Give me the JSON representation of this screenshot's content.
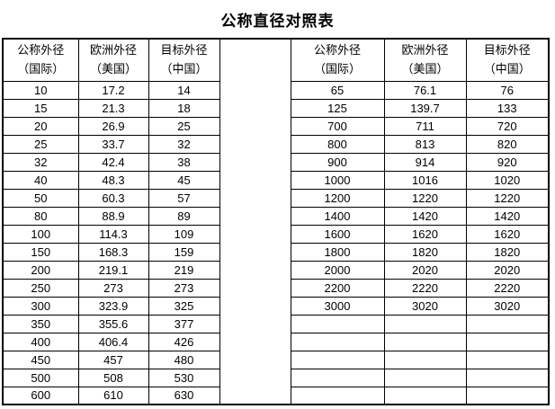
{
  "title": "公称直径对照表",
  "columns": [
    {
      "line1": "公称外径",
      "line2": "（国际）"
    },
    {
      "line1": "欧洲外径",
      "line2": "（美国）"
    },
    {
      "line1": "目标外径",
      "line2": "（中国）"
    }
  ],
  "tables": [
    {
      "rows": [
        [
          "10",
          "17.2",
          "14"
        ],
        [
          "15",
          "21.3",
          "18"
        ],
        [
          "20",
          "26.9",
          "25"
        ],
        [
          "25",
          "33.7",
          "32"
        ],
        [
          "32",
          "42.4",
          "38"
        ],
        [
          "40",
          "48.3",
          "45"
        ],
        [
          "50",
          "60.3",
          "57"
        ],
        [
          "80",
          "88.9",
          "89"
        ],
        [
          "100",
          "114.3",
          "109"
        ],
        [
          "150",
          "168.3",
          "159"
        ],
        [
          "200",
          "219.1",
          "219"
        ],
        [
          "250",
          "273",
          "273"
        ],
        [
          "300",
          "323.9",
          "325"
        ],
        [
          "350",
          "355.6",
          "377"
        ],
        [
          "400",
          "406.4",
          "426"
        ],
        [
          "450",
          "457",
          "480"
        ],
        [
          "500",
          "508",
          "530"
        ],
        [
          "600",
          "610",
          "630"
        ]
      ]
    },
    {
      "rows": [
        [
          "65",
          "76.1",
          "76"
        ],
        [
          "125",
          "139.7",
          "133"
        ],
        [
          "700",
          "711",
          "720"
        ],
        [
          "800",
          "813",
          "820"
        ],
        [
          "900",
          "914",
          "920"
        ],
        [
          "1000",
          "1016",
          "1020"
        ],
        [
          "1200",
          "1220",
          "1220"
        ],
        [
          "1400",
          "1420",
          "1420"
        ],
        [
          "1600",
          "1620",
          "1620"
        ],
        [
          "1800",
          "1820",
          "1820"
        ],
        [
          "2000",
          "2020",
          "2020"
        ],
        [
          "2200",
          "2220",
          "2220"
        ],
        [
          "3000",
          "3020",
          "3020"
        ],
        [
          "",
          "",
          ""
        ],
        [
          "",
          "",
          ""
        ],
        [
          "",
          "",
          ""
        ],
        [
          "",
          "",
          ""
        ],
        [
          "",
          "",
          ""
        ]
      ]
    }
  ],
  "colors": {
    "border": "#000000",
    "text": "#000000",
    "background": "#ffffff"
  }
}
